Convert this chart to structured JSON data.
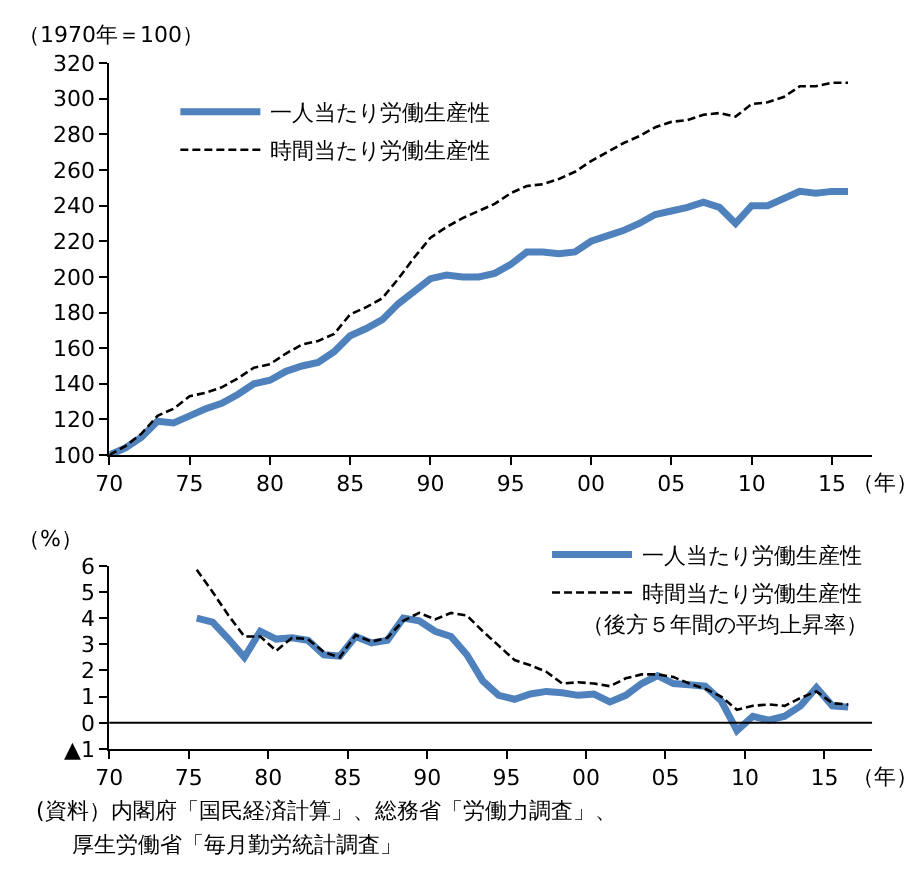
{
  "chart_data": [
    {
      "type": "line",
      "ylabel": "（1970年＝100）",
      "xlabel": "（年）",
      "legend": "top left",
      "x": [
        1970,
        1971,
        1972,
        1973,
        1974,
        1975,
        1976,
        1977,
        1978,
        1979,
        1980,
        1981,
        1982,
        1983,
        1984,
        1985,
        1986,
        1987,
        1988,
        1989,
        1990,
        1991,
        1992,
        1993,
        1994,
        1995,
        1996,
        1997,
        1998,
        1999,
        2000,
        2001,
        2002,
        2003,
        2004,
        2005,
        2006,
        2007,
        2008,
        2009,
        2010,
        2011,
        2012,
        2013,
        2014,
        2015,
        2016
      ],
      "series": [
        {
          "name": "一人当たり労働生産性",
          "color": "#4f81bd",
          "line_style": "solid",
          "values": [
            100,
            104,
            110,
            119,
            118,
            122,
            126,
            129,
            134,
            140,
            142,
            147,
            150,
            152,
            158,
            167,
            171,
            176,
            185,
            192,
            199,
            201,
            200,
            200,
            202,
            207,
            214,
            214,
            213,
            214,
            220,
            223,
            226,
            230,
            235,
            237,
            239,
            242,
            239,
            230,
            240,
            240,
            244,
            248,
            247,
            248,
            248
          ]
        },
        {
          "name": "時間当たり労働生産性",
          "color": "#000000",
          "line_style": "dashed",
          "values": [
            100,
            105,
            112,
            122,
            126,
            133,
            135,
            138,
            143,
            149,
            151,
            157,
            162,
            164,
            168,
            179,
            183,
            188,
            199,
            211,
            222,
            228,
            233,
            237,
            241,
            247,
            251,
            252,
            255,
            259,
            265,
            270,
            275,
            279,
            284,
            287,
            288,
            291,
            292,
            290,
            297,
            298,
            301,
            307,
            307,
            309,
            309
          ]
        }
      ],
      "xlim": [
        1970,
        2017.5
      ],
      "xticks": [
        {
          "value": 1970,
          "label": "70"
        },
        {
          "value": 1975,
          "label": "75"
        },
        {
          "value": 1980,
          "label": "80"
        },
        {
          "value": 1985,
          "label": "85"
        },
        {
          "value": 1990,
          "label": "90"
        },
        {
          "value": 1995,
          "label": "95"
        },
        {
          "value": 2000,
          "label": "00"
        },
        {
          "value": 2005,
          "label": "05"
        },
        {
          "value": 2010,
          "label": "10"
        },
        {
          "value": 2015,
          "label": "15"
        }
      ],
      "ylim": [
        100,
        320
      ],
      "yticks": [
        100,
        120,
        140,
        160,
        180,
        200,
        220,
        240,
        260,
        280,
        300,
        320
      ]
    },
    {
      "type": "line",
      "ylabel": "（%）",
      "xlabel": "（年）",
      "legend": "top right",
      "x": [
        1975.5,
        1976.5,
        1977.5,
        1978.5,
        1979.5,
        1980.5,
        1981.5,
        1982.5,
        1983.5,
        1984.5,
        1985.5,
        1986.5,
        1987.5,
        1988.5,
        1989.5,
        1990.5,
        1991.5,
        1992.5,
        1993.5,
        1994.5,
        1995.5,
        1996.5,
        1997.5,
        1998.5,
        1999.5,
        2000.5,
        2001.5,
        2002.5,
        2003.5,
        2004.5,
        2005.5,
        2006.5,
        2007.5,
        2008.5,
        2009.5,
        2010.5,
        2011.5,
        2012.5,
        2013.5,
        2014.5,
        2015.5,
        2016.5
      ],
      "series": [
        {
          "name": "一人当たり労働生産性",
          "color": "#4f81bd",
          "line_style": "solid",
          "values": [
            4.0,
            3.85,
            3.2,
            2.5,
            3.5,
            3.2,
            3.25,
            3.15,
            2.6,
            2.55,
            3.3,
            3.05,
            3.15,
            4.0,
            3.9,
            3.5,
            3.3,
            2.6,
            1.6,
            1.05,
            0.9,
            1.1,
            1.2,
            1.15,
            1.05,
            1.1,
            0.8,
            1.05,
            1.5,
            1.8,
            1.5,
            1.45,
            1.4,
            0.85,
            -0.3,
            0.25,
            0.1,
            0.25,
            0.65,
            1.35,
            0.65,
            0.6
          ]
        },
        {
          "name": "時間当たり労働生産性",
          "color": "#000000",
          "line_style": "dashed",
          "values": [
            5.85,
            5.0,
            4.1,
            3.3,
            3.3,
            2.75,
            3.25,
            3.2,
            2.7,
            2.5,
            3.35,
            3.1,
            3.25,
            3.9,
            4.2,
            3.95,
            4.2,
            4.1,
            3.5,
            2.95,
            2.4,
            2.2,
            1.95,
            1.5,
            1.55,
            1.5,
            1.4,
            1.7,
            1.85,
            1.85,
            1.75,
            1.5,
            1.3,
            1.0,
            0.5,
            0.65,
            0.7,
            0.65,
            0.95,
            1.2,
            0.75,
            0.7
          ]
        }
      ],
      "xlim": [
        1970,
        2018
      ],
      "xticks": [
        {
          "value": 1970,
          "label": "70"
        },
        {
          "value": 1975,
          "label": "75"
        },
        {
          "value": 1980,
          "label": "80"
        },
        {
          "value": 1985,
          "label": "85"
        },
        {
          "value": 1990,
          "label": "90"
        },
        {
          "value": 1995,
          "label": "95"
        },
        {
          "value": 2000,
          "label": "00"
        },
        {
          "value": 2005,
          "label": "05"
        },
        {
          "value": 2010,
          "label": "10"
        },
        {
          "value": 2015,
          "label": "15"
        }
      ],
      "ylim": [
        -1,
        6
      ],
      "yticks": [
        {
          "value": -1,
          "label": "▲1"
        },
        0,
        1,
        2,
        3,
        4,
        5,
        6
      ],
      "ref_lines": [
        {
          "axis": "y",
          "value": 0,
          "color": "#000000"
        }
      ],
      "annotations": [
        "（後方５年間の平均上昇率）",
        "(資料）内閣府「国民経済計算」、総務省「労働力調査」、",
        "厚生労働省「毎月勤労統計調査」"
      ]
    }
  ]
}
